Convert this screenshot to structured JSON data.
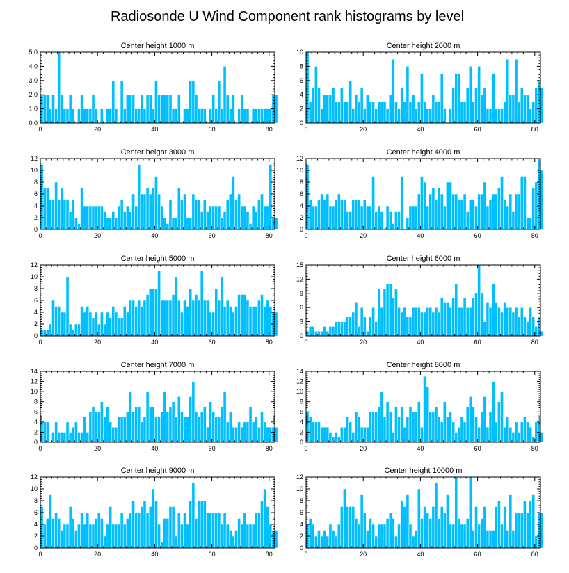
{
  "figure": {
    "title": "Radiosonde U Wind Component rank histograms by level"
  },
  "chart_data": [
    {
      "type": "bar",
      "title": "Center height 1000 m",
      "xlim": [
        0,
        82
      ],
      "ylim": [
        0,
        5
      ],
      "yticks": [
        "0.0",
        "1.0",
        "2.0",
        "3.0",
        "4.0",
        "5.0"
      ],
      "xticks": [
        "0",
        "20",
        "40",
        "60",
        "80"
      ],
      "values": [
        2,
        2,
        2,
        1,
        2,
        1,
        5,
        2,
        1,
        1,
        2,
        1,
        0,
        1,
        2,
        1,
        1,
        1,
        2,
        1,
        0,
        1,
        0,
        1,
        1,
        3,
        1,
        0,
        3,
        1,
        2,
        2,
        2,
        1,
        1,
        2,
        1,
        2,
        2,
        1,
        3,
        2,
        2,
        2,
        2,
        2,
        1,
        1,
        2,
        0,
        1,
        1,
        3,
        3,
        2,
        1,
        1,
        1,
        0,
        1,
        2,
        1,
        3,
        1,
        4,
        2,
        1,
        2,
        0,
        1,
        2,
        1,
        1,
        0,
        1,
        1,
        1,
        1,
        1,
        1,
        1,
        2,
        2
      ]
    },
    {
      "type": "bar",
      "title": "Center height 2000 m",
      "xlim": [
        0,
        82
      ],
      "ylim": [
        0,
        10
      ],
      "yticks": [
        "0",
        "2",
        "4",
        "6",
        "8",
        "10"
      ],
      "xticks": [
        "0",
        "20",
        "40",
        "60",
        "80"
      ],
      "values": [
        10,
        3,
        5,
        8,
        5,
        2,
        4,
        4,
        4,
        5,
        3,
        3,
        5,
        3,
        3,
        6,
        2,
        4,
        3,
        5,
        2,
        4,
        3,
        3,
        2,
        3,
        3,
        3,
        2,
        4,
        9,
        3,
        2,
        5,
        3,
        8,
        3,
        4,
        2,
        3,
        7,
        3,
        2,
        2,
        4,
        3,
        3,
        7,
        2,
        0,
        2,
        5,
        7,
        7,
        3,
        3,
        5,
        8,
        3,
        5,
        8,
        4,
        5,
        2,
        2,
        7,
        2,
        2,
        2,
        3,
        9,
        4,
        4,
        9,
        3,
        5,
        4,
        4,
        2,
        3,
        5,
        6,
        5
      ]
    },
    {
      "type": "bar",
      "title": "Center height 3000 m",
      "xlim": [
        0,
        82
      ],
      "ylim": [
        0,
        12
      ],
      "yticks": [
        "0",
        "2",
        "4",
        "6",
        "8",
        "10",
        "12"
      ],
      "xticks": [
        "0",
        "20",
        "40",
        "60",
        "80"
      ],
      "values": [
        11,
        7,
        7,
        5,
        5,
        8,
        5,
        7,
        5,
        5,
        3,
        5,
        2,
        1,
        7,
        4,
        4,
        4,
        4,
        4,
        4,
        4,
        3,
        2,
        2,
        3,
        2,
        4,
        5,
        3,
        4,
        3,
        6,
        4,
        11,
        6,
        6,
        7,
        6,
        7,
        9,
        6,
        4,
        2,
        1,
        5,
        2,
        2,
        7,
        5,
        6,
        2,
        2,
        6,
        5,
        5,
        3,
        5,
        3,
        4,
        4,
        4,
        4,
        2,
        3,
        5,
        6,
        9,
        5,
        6,
        4,
        4,
        3,
        1,
        4,
        3,
        5,
        6,
        4,
        4,
        11,
        2,
        2
      ]
    },
    {
      "type": "bar",
      "title": "Center height 4000 m",
      "xlim": [
        0,
        82
      ],
      "ylim": [
        0,
        12
      ],
      "yticks": [
        "0",
        "2",
        "4",
        "6",
        "8",
        "10",
        "12"
      ],
      "xticks": [
        "0",
        "20",
        "40",
        "60",
        "80"
      ],
      "values": [
        11,
        5,
        4,
        4,
        5,
        6,
        5,
        6,
        4,
        4,
        5,
        6,
        5,
        5,
        3,
        3,
        5,
        5,
        5,
        4,
        5,
        4,
        4,
        9,
        3,
        4,
        3,
        0,
        4,
        3,
        1,
        3,
        3,
        9,
        0,
        2,
        4,
        4,
        4,
        6,
        9,
        8,
        4,
        6,
        7,
        5,
        7,
        6,
        4,
        8,
        8,
        6,
        6,
        5,
        5,
        6,
        3,
        5,
        5,
        4,
        6,
        6,
        8,
        4,
        5,
        6,
        6,
        7,
        9,
        5,
        4,
        6,
        3,
        6,
        6,
        9,
        9,
        2,
        2,
        7,
        8,
        12,
        10
      ]
    },
    {
      "type": "bar",
      "title": "Center height 5000 m",
      "xlim": [
        0,
        82
      ],
      "ylim": [
        0,
        12
      ],
      "yticks": [
        "0",
        "2",
        "4",
        "6",
        "8",
        "10",
        "12"
      ],
      "xticks": [
        "0",
        "20",
        "40",
        "60",
        "80"
      ],
      "values": [
        1,
        1,
        1,
        2,
        6,
        5,
        5,
        4,
        4,
        10,
        2,
        1,
        2,
        2,
        5,
        4,
        5,
        4,
        3,
        4,
        2,
        4,
        2,
        4,
        3,
        5,
        4,
        3,
        3,
        5,
        4,
        6,
        6,
        5,
        6,
        5,
        6,
        7,
        8,
        8,
        8,
        11,
        6,
        6,
        6,
        6,
        7,
        10,
        6,
        4,
        6,
        5,
        8,
        6,
        7,
        6,
        11,
        6,
        6,
        4,
        4,
        8,
        6,
        10,
        5,
        6,
        5,
        4,
        5,
        7,
        7,
        7,
        6,
        5,
        5,
        5,
        6,
        7,
        5,
        6,
        5,
        4,
        4
      ]
    },
    {
      "type": "bar",
      "title": "Center height 6000 m",
      "xlim": [
        0,
        82
      ],
      "ylim": [
        0,
        15
      ],
      "yticks": [
        "0",
        "3",
        "6",
        "9",
        "12",
        "15"
      ],
      "xticks": [
        "0",
        "20",
        "40",
        "60",
        "80"
      ],
      "values": [
        1,
        2,
        2,
        1,
        1,
        1,
        2,
        1,
        2,
        2,
        3,
        3,
        3,
        3,
        4,
        4,
        5,
        7,
        2,
        6,
        4,
        1,
        4,
        6,
        3,
        10,
        6,
        10,
        11,
        11,
        8,
        10,
        6,
        5,
        6,
        4,
        4,
        6,
        6,
        6,
        5,
        5,
        6,
        6,
        5,
        6,
        5,
        8,
        7,
        7,
        6,
        8,
        11,
        6,
        6,
        8,
        6,
        6,
        8,
        9,
        15,
        9,
        3,
        7,
        6,
        11,
        7,
        6,
        5,
        7,
        6,
        6,
        5,
        6,
        4,
        6,
        4,
        3,
        6,
        4,
        2,
        4,
        1
      ]
    },
    {
      "type": "bar",
      "title": "Center height 7000 m",
      "xlim": [
        0,
        82
      ],
      "ylim": [
        0,
        14
      ],
      "yticks": [
        "0",
        "2",
        "4",
        "6",
        "8",
        "10",
        "12",
        "14"
      ],
      "xticks": [
        "0",
        "20",
        "40",
        "60",
        "80"
      ],
      "values": [
        4,
        4,
        4,
        0,
        2,
        4,
        2,
        2,
        2,
        4,
        2,
        3,
        4,
        2,
        2,
        5,
        2,
        6,
        7,
        6,
        6,
        8,
        5,
        7,
        4,
        3,
        3,
        5,
        5,
        5,
        6,
        10,
        6,
        7,
        7,
        4,
        5,
        10,
        7,
        7,
        5,
        5,
        6,
        10,
        6,
        7,
        8,
        5,
        9,
        6,
        5,
        5,
        9,
        12,
        6,
        5,
        6,
        7,
        3,
        8,
        6,
        5,
        5,
        7,
        10,
        4,
        6,
        3,
        3,
        4,
        3,
        4,
        4,
        7,
        4,
        5,
        3,
        6,
        4,
        3,
        3,
        3,
        3
      ]
    },
    {
      "type": "bar",
      "title": "Center height 8000 m",
      "xlim": [
        0,
        82
      ],
      "ylim": [
        0,
        14
      ],
      "yticks": [
        "0",
        "2",
        "4",
        "6",
        "8",
        "10",
        "12",
        "14"
      ],
      "xticks": [
        "0",
        "20",
        "40",
        "60",
        "80"
      ],
      "values": [
        6,
        5,
        4,
        4,
        4,
        3,
        3,
        3,
        2,
        1,
        2,
        1,
        3,
        3,
        5,
        4,
        2,
        6,
        5,
        3,
        3,
        3,
        6,
        6,
        6,
        7,
        10,
        5,
        8,
        6,
        2,
        7,
        5,
        7,
        3,
        5,
        7,
        6,
        6,
        8,
        3,
        13,
        11,
        6,
        6,
        7,
        5,
        4,
        8,
        5,
        6,
        4,
        2,
        3,
        5,
        4,
        7,
        9,
        7,
        5,
        3,
        6,
        9,
        3,
        6,
        12,
        4,
        8,
        10,
        3,
        5,
        3,
        2,
        4,
        2,
        4,
        5,
        4,
        3,
        1,
        4,
        4,
        2
      ]
    },
    {
      "type": "bar",
      "title": "Center height 9000 m",
      "xlim": [
        0,
        82
      ],
      "ylim": [
        0,
        12
      ],
      "yticks": [
        "0",
        "2",
        "4",
        "6",
        "8",
        "10",
        "12"
      ],
      "xticks": [
        "0",
        "20",
        "40",
        "60",
        "80"
      ],
      "values": [
        7,
        4,
        5,
        9,
        5,
        6,
        5,
        3,
        4,
        4,
        7,
        5,
        3,
        4,
        6,
        4,
        6,
        4,
        4,
        5,
        6,
        5,
        2,
        4,
        7,
        4,
        4,
        4,
        6,
        4,
        5,
        6,
        8,
        6,
        6,
        7,
        8,
        6,
        7,
        10,
        8,
        4,
        1,
        5,
        5,
        7,
        7,
        2,
        6,
        4,
        6,
        4,
        8,
        11,
        5,
        8,
        8,
        8,
        6,
        6,
        6,
        6,
        6,
        4,
        6,
        4,
        3,
        2,
        3,
        5,
        4,
        6,
        4,
        4,
        4,
        6,
        6,
        8,
        10,
        7,
        4,
        3,
        3
      ]
    },
    {
      "type": "bar",
      "title": "Center height 10000 m",
      "xlim": [
        0,
        82
      ],
      "ylim": [
        0,
        12
      ],
      "yticks": [
        "0",
        "2",
        "4",
        "6",
        "8",
        "10",
        "12"
      ],
      "xticks": [
        "0",
        "20",
        "40",
        "60",
        "80"
      ],
      "values": [
        4,
        5,
        4,
        2,
        3,
        2,
        3,
        2,
        4,
        3,
        2,
        4,
        7,
        10,
        7,
        7,
        7,
        5,
        4,
        9,
        6,
        3,
        5,
        4,
        2,
        4,
        4,
        4,
        5,
        6,
        5,
        2,
        4,
        8,
        7,
        9,
        4,
        2,
        3,
        10,
        5,
        7,
        6,
        5,
        7,
        11,
        5,
        7,
        6,
        9,
        4,
        4,
        12,
        5,
        4,
        4,
        5,
        12,
        3,
        7,
        4,
        5,
        7,
        3,
        3,
        3,
        7,
        8,
        4,
        7,
        3,
        9,
        3,
        6,
        6,
        6,
        8,
        6,
        8,
        9,
        2,
        6,
        6
      ]
    }
  ]
}
